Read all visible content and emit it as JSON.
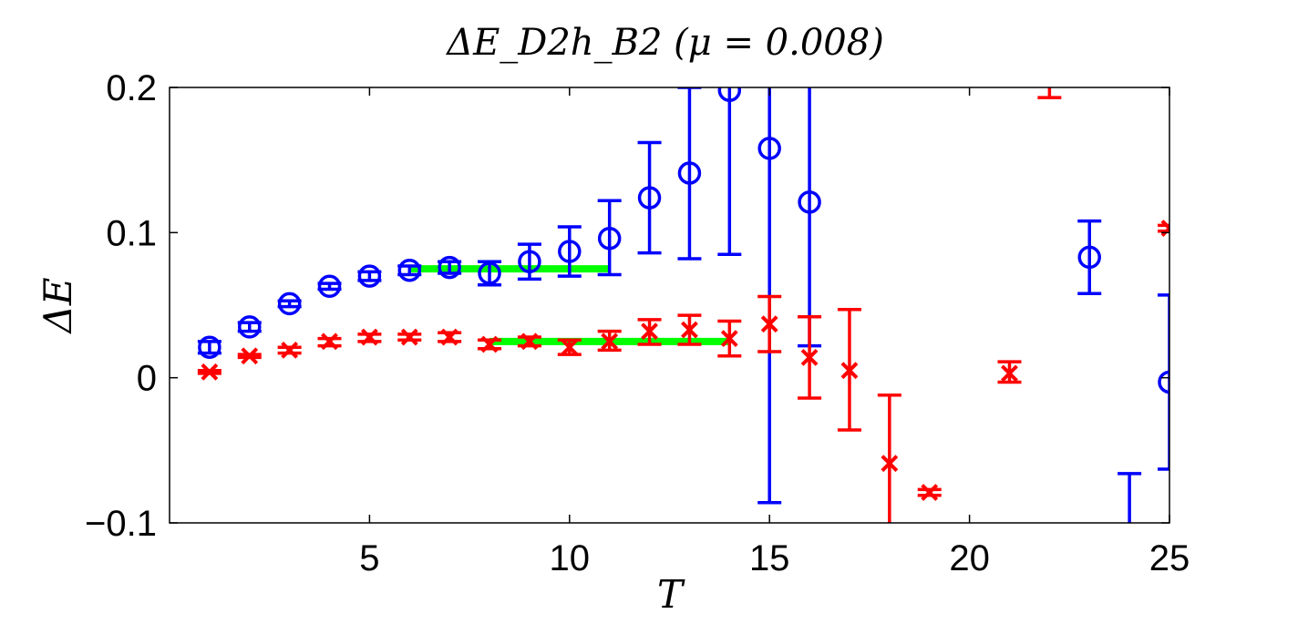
{
  "chart_data": {
    "type": "scatter",
    "title": "ΔE_D2h_B2  (μ = 0.008)",
    "xlabel": "T",
    "ylabel": "ΔE",
    "xlim": [
      0,
      25
    ],
    "ylim": [
      -0.1,
      0.2
    ],
    "xticks": [
      "5",
      "10",
      "15",
      "20",
      "25"
    ],
    "yticks": [
      "−0.1",
      "0",
      "0.1",
      "0.2"
    ],
    "colors": {
      "blue": "#0000ff",
      "red": "#ff0000",
      "green": "#00ff00"
    },
    "series": [
      {
        "name": "blue circles",
        "marker": "circle",
        "color": "#0000ff",
        "points": [
          {
            "x": 1,
            "y": 0.021,
            "lo": 0.017,
            "hi": 0.025
          },
          {
            "x": 2,
            "y": 0.035,
            "lo": 0.032,
            "hi": 0.038
          },
          {
            "x": 3,
            "y": 0.051,
            "lo": 0.049,
            "hi": 0.053
          },
          {
            "x": 4,
            "y": 0.063,
            "lo": 0.061,
            "hi": 0.065
          },
          {
            "x": 5,
            "y": 0.07,
            "lo": 0.067,
            "hi": 0.073
          },
          {
            "x": 6,
            "y": 0.074,
            "lo": 0.071,
            "hi": 0.077
          },
          {
            "x": 7,
            "y": 0.076,
            "lo": 0.072,
            "hi": 0.08
          },
          {
            "x": 8,
            "y": 0.072,
            "lo": 0.064,
            "hi": 0.08
          },
          {
            "x": 9,
            "y": 0.08,
            "lo": 0.068,
            "hi": 0.092
          },
          {
            "x": 10,
            "y": 0.087,
            "lo": 0.07,
            "hi": 0.104
          },
          {
            "x": 11,
            "y": 0.096,
            "lo": 0.071,
            "hi": 0.122
          },
          {
            "x": 12,
            "y": 0.124,
            "lo": 0.086,
            "hi": 0.162
          },
          {
            "x": 13,
            "y": 0.141,
            "lo": 0.082,
            "hi": 0.2
          },
          {
            "x": 14,
            "y": 0.198,
            "lo": 0.085,
            "hi": 0.31
          },
          {
            "x": 15,
            "y": 0.158,
            "lo": -0.086,
            "hi": 0.4
          },
          {
            "x": 16,
            "y": 0.121,
            "lo": 0.022,
            "hi": 0.3
          },
          {
            "x": 23,
            "y": 0.083,
            "lo": 0.058,
            "hi": 0.108
          },
          {
            "x": 24,
            "y": null,
            "lo": -0.15,
            "hi": -0.066
          },
          {
            "x": 25,
            "y": -0.003,
            "lo": -0.063,
            "hi": 0.057
          }
        ]
      },
      {
        "name": "red crosses",
        "marker": "x",
        "color": "#ff0000",
        "points": [
          {
            "x": 1,
            "y": 0.004,
            "lo": 0.003,
            "hi": 0.005
          },
          {
            "x": 2,
            "y": 0.015,
            "lo": 0.014,
            "hi": 0.016
          },
          {
            "x": 3,
            "y": 0.019,
            "lo": 0.017,
            "hi": 0.021
          },
          {
            "x": 4,
            "y": 0.025,
            "lo": 0.022,
            "hi": 0.027
          },
          {
            "x": 5,
            "y": 0.028,
            "lo": 0.025,
            "hi": 0.03
          },
          {
            "x": 6,
            "y": 0.028,
            "lo": 0.026,
            "hi": 0.03
          },
          {
            "x": 7,
            "y": 0.028,
            "lo": 0.025,
            "hi": 0.031
          },
          {
            "x": 8,
            "y": 0.023,
            "lo": 0.02,
            "hi": 0.026
          },
          {
            "x": 9,
            "y": 0.025,
            "lo": 0.022,
            "hi": 0.028
          },
          {
            "x": 10,
            "y": 0.021,
            "lo": 0.016,
            "hi": 0.026
          },
          {
            "x": 11,
            "y": 0.025,
            "lo": 0.019,
            "hi": 0.032
          },
          {
            "x": 12,
            "y": 0.032,
            "lo": 0.023,
            "hi": 0.04
          },
          {
            "x": 13,
            "y": 0.033,
            "lo": 0.023,
            "hi": 0.043
          },
          {
            "x": 14,
            "y": 0.027,
            "lo": 0.015,
            "hi": 0.039
          },
          {
            "x": 15,
            "y": 0.037,
            "lo": 0.018,
            "hi": 0.056
          },
          {
            "x": 16,
            "y": 0.014,
            "lo": -0.014,
            "hi": 0.042
          },
          {
            "x": 17,
            "y": 0.005,
            "lo": -0.036,
            "hi": 0.047
          },
          {
            "x": 18,
            "y": -0.059,
            "lo": -0.11,
            "hi": -0.012
          },
          {
            "x": 19,
            "y": -0.079,
            "lo": -0.081,
            "hi": -0.077
          },
          {
            "x": 21,
            "y": 0.003,
            "lo": -0.003,
            "hi": 0.011
          },
          {
            "x": 22,
            "y": null,
            "lo": 0.193,
            "hi": 0.3
          },
          {
            "x": 25,
            "y": 0.103,
            "lo": 0.101,
            "hi": 0.105
          }
        ]
      }
    ],
    "fits": [
      {
        "name": "blue plateau fit",
        "color": "#00ff00",
        "x_from": 6,
        "x_to": 11,
        "y": 0.075
      },
      {
        "name": "red plateau fit",
        "color": "#00ff00",
        "x_from": 8,
        "x_to": 14,
        "y": 0.025
      }
    ]
  }
}
